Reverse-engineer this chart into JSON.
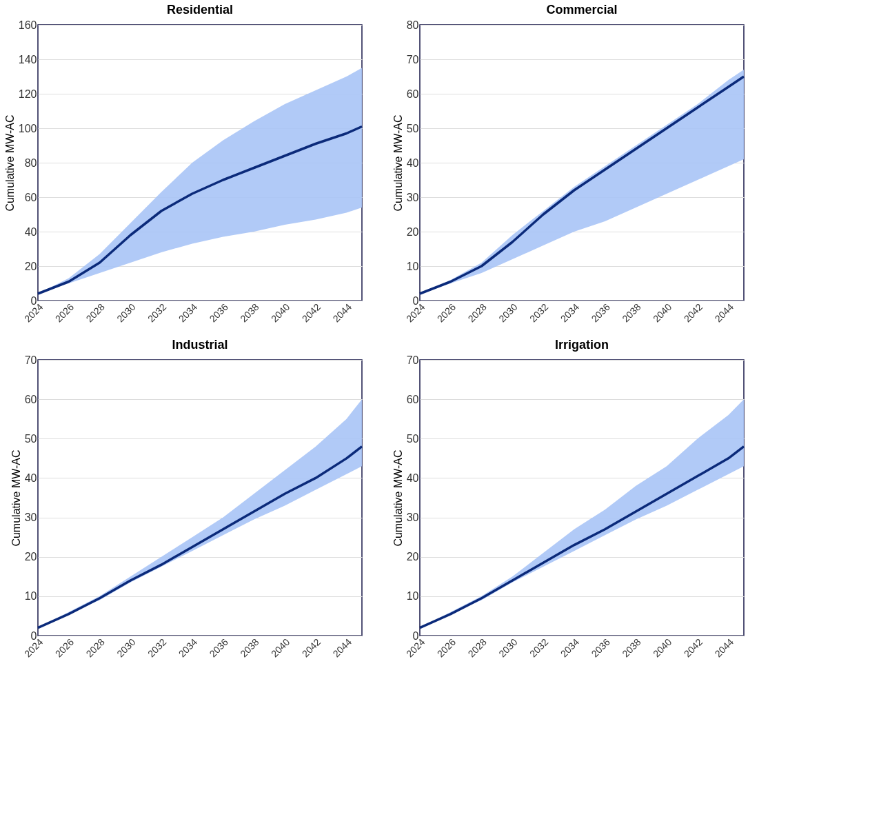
{
  "chart_data": [
    {
      "type": "line",
      "title": "Residential",
      "ylabel": "Cumulative MW-AC",
      "x": [
        2024,
        2026,
        2028,
        2030,
        2032,
        2034,
        2036,
        2038,
        2040,
        2042,
        2044,
        2045
      ],
      "xlim": [
        2024,
        2045
      ],
      "xticks": [
        2024,
        2026,
        2028,
        2030,
        2032,
        2034,
        2036,
        2038,
        2040,
        2042,
        2044
      ],
      "ylim": [
        0,
        160
      ],
      "yticks": [
        0,
        20,
        40,
        60,
        80,
        100,
        120,
        140,
        160
      ],
      "grid": "y",
      "series": [
        {
          "color": "#0b2a7a",
          "values": [
            4,
            11,
            22,
            38,
            52,
            62,
            70,
            77,
            84,
            91,
            97,
            101
          ],
          "lower": [
            4,
            10,
            16,
            22,
            28,
            33,
            37,
            40,
            44,
            47,
            51,
            54
          ],
          "upper": [
            4,
            13,
            27,
            45,
            63,
            80,
            93,
            104,
            114,
            122,
            130,
            135
          ]
        }
      ]
    },
    {
      "type": "line",
      "title": "Commercial",
      "ylabel": "Cumulative MW-AC",
      "x": [
        2024,
        2026,
        2028,
        2030,
        2032,
        2034,
        2036,
        2038,
        2040,
        2042,
        2044,
        2045
      ],
      "xlim": [
        2024,
        2045
      ],
      "xticks": [
        2024,
        2026,
        2028,
        2030,
        2032,
        2034,
        2036,
        2038,
        2040,
        2042,
        2044
      ],
      "ylim": [
        0,
        80
      ],
      "yticks": [
        0,
        10,
        20,
        30,
        40,
        50,
        60,
        70,
        80
      ],
      "grid": "y",
      "series": [
        {
          "color": "#0b2a7a",
          "values": [
            2,
            5.5,
            10,
            17,
            25,
            32,
            38,
            44,
            50,
            56,
            62,
            65
          ],
          "lower": [
            2,
            5,
            8,
            12,
            16,
            20,
            23,
            27,
            31,
            35,
            39,
            41
          ],
          "upper": [
            2,
            6,
            11,
            19,
            26,
            33,
            39,
            45,
            51,
            57,
            64,
            67
          ]
        }
      ]
    },
    {
      "type": "line",
      "title": "Industrial",
      "ylabel": "Cumulative MW-AC",
      "x": [
        2024,
        2026,
        2028,
        2030,
        2032,
        2034,
        2036,
        2038,
        2040,
        2042,
        2044,
        2045
      ],
      "xlim": [
        2024,
        2045
      ],
      "xticks": [
        2024,
        2026,
        2028,
        2030,
        2032,
        2034,
        2036,
        2038,
        2040,
        2042,
        2044
      ],
      "ylim": [
        0,
        70
      ],
      "yticks": [
        0,
        10,
        20,
        30,
        40,
        50,
        60,
        70
      ],
      "grid": "y",
      "series": [
        {
          "color": "#0b2a7a",
          "values": [
            2,
            5.5,
            9.5,
            14,
            18,
            22.5,
            27,
            31.5,
            36,
            40,
            45,
            48
          ],
          "lower": [
            2,
            5.5,
            9,
            13.5,
            17.5,
            21.5,
            25.5,
            29.5,
            33,
            37,
            41,
            43
          ],
          "upper": [
            2,
            6,
            10,
            15,
            20,
            25,
            30,
            36,
            42,
            48,
            55,
            60
          ]
        }
      ]
    },
    {
      "type": "line",
      "title": "Irrigation",
      "ylabel": "Cumulative MW-AC",
      "x": [
        2024,
        2026,
        2028,
        2030,
        2032,
        2034,
        2036,
        2038,
        2040,
        2042,
        2044,
        2045
      ],
      "xlim": [
        2024,
        2045
      ],
      "xticks": [
        2024,
        2026,
        2028,
        2030,
        2032,
        2034,
        2036,
        2038,
        2040,
        2042,
        2044
      ],
      "ylim": [
        0,
        70
      ],
      "yticks": [
        0,
        10,
        20,
        30,
        40,
        50,
        60,
        70
      ],
      "grid": "y",
      "series": [
        {
          "color": "#0b2a7a",
          "values": [
            2,
            5.5,
            9.5,
            14,
            18.5,
            23,
            27,
            31.5,
            36,
            40.5,
            45,
            48
          ],
          "lower": [
            2,
            5.5,
            9,
            13.5,
            17.5,
            21.5,
            25.5,
            29.5,
            33,
            37,
            41,
            43
          ],
          "upper": [
            2,
            6,
            10,
            15,
            21,
            27,
            32,
            38,
            43,
            50,
            56,
            60
          ]
        }
      ]
    }
  ]
}
